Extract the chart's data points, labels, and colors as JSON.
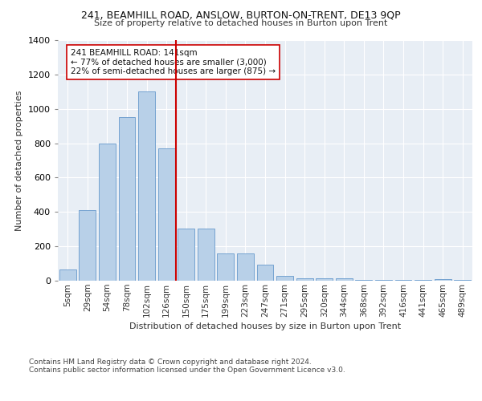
{
  "title1": "241, BEAMHILL ROAD, ANSLOW, BURTON-ON-TRENT, DE13 9QP",
  "title2": "Size of property relative to detached houses in Burton upon Trent",
  "xlabel": "Distribution of detached houses by size in Burton upon Trent",
  "ylabel": "Number of detached properties",
  "categories": [
    "5sqm",
    "29sqm",
    "54sqm",
    "78sqm",
    "102sqm",
    "126sqm",
    "150sqm",
    "175sqm",
    "199sqm",
    "223sqm",
    "247sqm",
    "271sqm",
    "295sqm",
    "320sqm",
    "344sqm",
    "368sqm",
    "392sqm",
    "416sqm",
    "441sqm",
    "465sqm",
    "489sqm"
  ],
  "bar_heights": [
    65,
    410,
    800,
    950,
    1100,
    770,
    305,
    305,
    160,
    160,
    95,
    30,
    15,
    15,
    12,
    5,
    5,
    5,
    5,
    8,
    5
  ],
  "bar_color": "#b8d0e8",
  "bar_edgecolor": "#6699cc",
  "vline_color": "#cc0000",
  "vline_x_idx": 5.5,
  "annotation_text": "241 BEAMHILL ROAD: 141sqm\n← 77% of detached houses are smaller (3,000)\n22% of semi-detached houses are larger (875) →",
  "annotation_box_facecolor": "#ffffff",
  "annotation_box_edgecolor": "#cc0000",
  "ylim": [
    0,
    1400
  ],
  "yticks": [
    0,
    200,
    400,
    600,
    800,
    1000,
    1200,
    1400
  ],
  "bg_color": "#e8eef5",
  "footer1": "Contains HM Land Registry data © Crown copyright and database right 2024.",
  "footer2": "Contains public sector information licensed under the Open Government Licence v3.0."
}
